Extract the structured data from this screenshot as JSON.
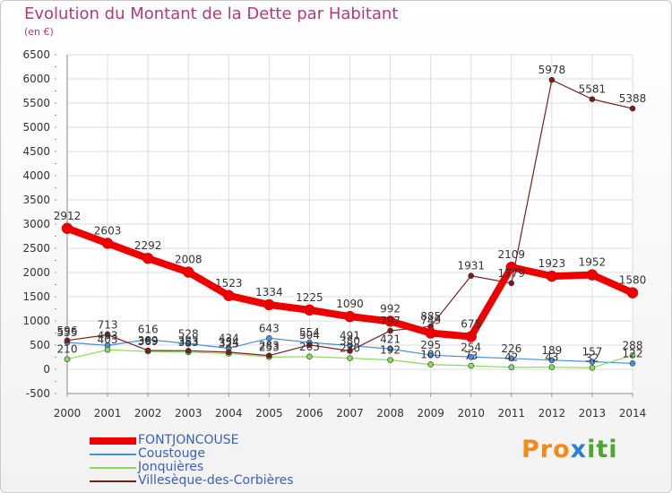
{
  "title": "Evolution du Montant de la Dette par Habitant",
  "unit_label": "(en €)",
  "logo_text": "Proxiti",
  "chart_data": {
    "type": "line",
    "title": "Evolution du Montant de la Dette par Habitant",
    "ylabel": "(en €)",
    "xlabel": "",
    "ylim": [
      -500,
      6500
    ],
    "yticks": [
      -500,
      0,
      500,
      1000,
      1500,
      2000,
      2500,
      3000,
      3500,
      4000,
      4500,
      5000,
      5500,
      6000,
      6500
    ],
    "grid": true,
    "legend_position": "bottom-left",
    "x": [
      "2000",
      "2001",
      "2002",
      "2003",
      "2004",
      "2005",
      "2006",
      "2007",
      "2008",
      "2009",
      "2010",
      "2011",
      "2012",
      "2013",
      "2014"
    ],
    "series": [
      {
        "name": "FONTJONCOUSE",
        "color": "#ee0000",
        "values": [
          2912,
          2603,
          2292,
          2008,
          1523,
          1334,
          1225,
          1090,
          992,
          749,
          675,
          2109,
          1923,
          1952,
          1580
        ]
      },
      {
        "name": "Coustouge",
        "color": "#4a90d9",
        "values": [
          555,
          493,
          616,
          528,
          434,
          643,
          554,
          491,
          421,
          295,
          254,
          226,
          189,
          157,
          122
        ]
      },
      {
        "name": "Jonquières",
        "color": "#88dd55",
        "values": [
          210,
          403,
          369,
          353,
          325,
          253,
          263,
          230,
          192,
          100,
          73,
          42,
          43,
          32,
          288
        ]
      },
      {
        "name": "Villesèque-des-Corbières",
        "color": "#7a1d1d",
        "values": [
          596,
          713,
          389,
          383,
          354,
          283,
          504,
          380,
          797,
          885,
          1931,
          1779,
          5978,
          5581,
          5388
        ]
      }
    ]
  }
}
